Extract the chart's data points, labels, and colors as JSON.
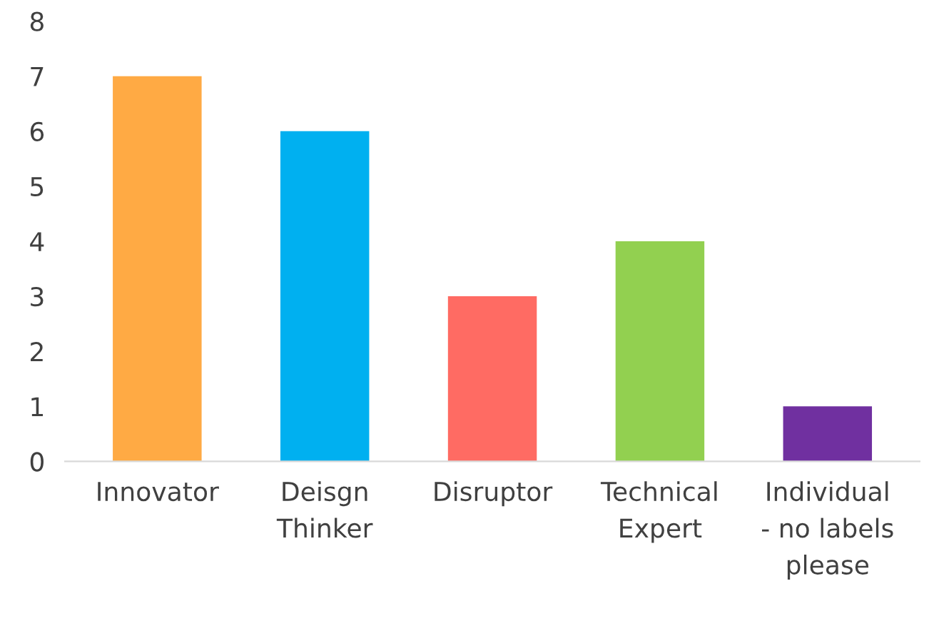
{
  "chart_data": {
    "type": "bar",
    "categories": [
      "Innovator",
      "Deisgn\nThinker",
      "Disruptor",
      "Technical\nExpert",
      "Individual\n- no labels\nplease"
    ],
    "values": [
      7,
      6,
      3,
      4,
      1
    ],
    "colors": [
      "#ffaa44",
      "#00b0f0",
      "#ff6b63",
      "#92d050",
      "#7030a0"
    ],
    "ylim": [
      0,
      8
    ],
    "yticks": [
      0,
      1,
      2,
      3,
      4,
      5,
      6,
      7,
      8
    ],
    "grid": false
  }
}
